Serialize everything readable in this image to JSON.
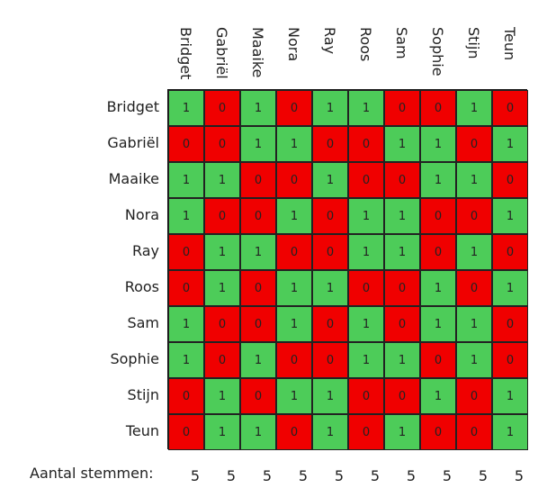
{
  "names": [
    "Bridget",
    "Gabriël",
    "Maaike",
    "Nora",
    "Ray",
    "Roos",
    "Sam",
    "Sophie",
    "Stijn",
    "Teun"
  ],
  "matrix": [
    [
      1,
      0,
      1,
      0,
      1,
      1,
      0,
      0,
      1,
      0
    ],
    [
      0,
      0,
      1,
      1,
      0,
      0,
      1,
      1,
      0,
      1
    ],
    [
      1,
      1,
      0,
      0,
      1,
      0,
      0,
      1,
      1,
      0
    ],
    [
      1,
      0,
      0,
      1,
      0,
      1,
      1,
      0,
      0,
      1
    ],
    [
      0,
      1,
      1,
      0,
      0,
      1,
      1,
      0,
      1,
      0
    ],
    [
      0,
      1,
      0,
      1,
      1,
      0,
      0,
      1,
      0,
      1
    ],
    [
      1,
      0,
      0,
      1,
      0,
      1,
      0,
      1,
      1,
      0
    ],
    [
      1,
      0,
      1,
      0,
      0,
      1,
      1,
      0,
      1,
      0
    ],
    [
      0,
      1,
      0,
      1,
      1,
      0,
      0,
      1,
      0,
      1
    ],
    [
      0,
      1,
      1,
      0,
      1,
      0,
      1,
      0,
      0,
      1
    ]
  ],
  "totals_label": "Aantal stemmen:",
  "totals": [
    5,
    5,
    5,
    5,
    5,
    5,
    5,
    5,
    5,
    5
  ],
  "colors": {
    "yes": "#4dcc59",
    "no": "#f00000",
    "border": "#222222"
  }
}
